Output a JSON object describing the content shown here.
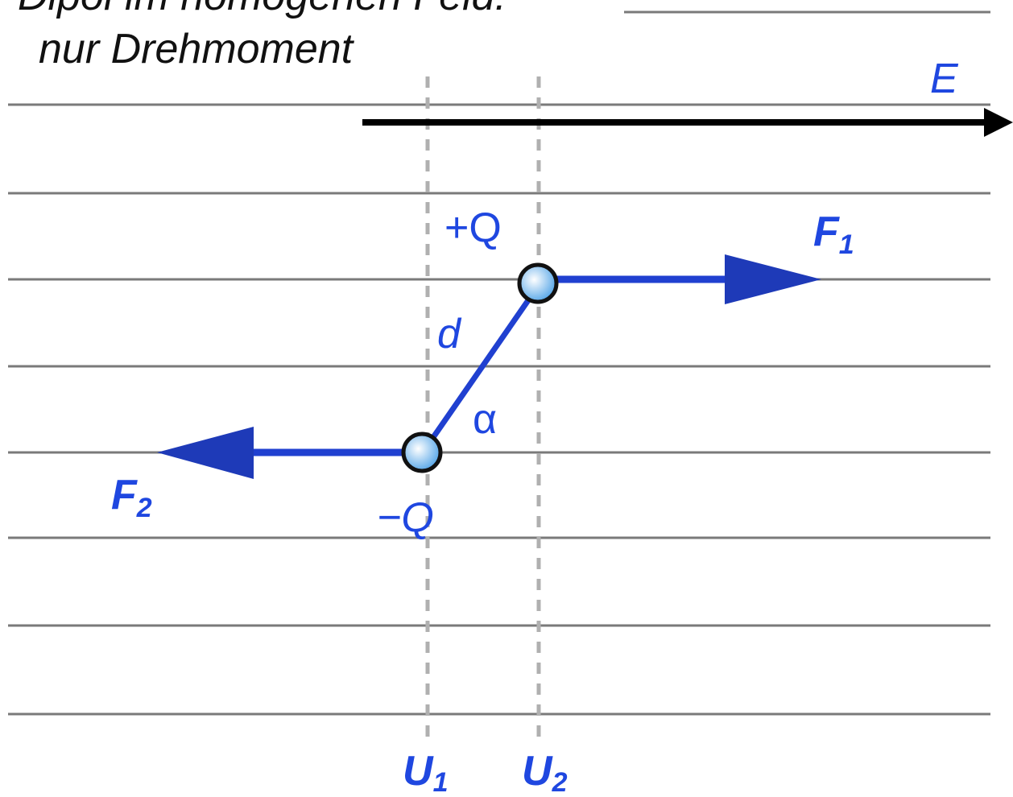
{
  "title": [
    "Dipol im homogenen Feld:",
    "nur Drehmoment"
  ],
  "labels": {
    "field": "E",
    "positive_charge": "+Q",
    "negative_charge": "−Q",
    "distance": "d",
    "angle": "α",
    "force_1": {
      "text": "F",
      "sub": "1"
    },
    "force_2": {
      "text": "F",
      "sub": "2"
    },
    "potential_1": {
      "text": "U",
      "sub": "1"
    },
    "potential_2": {
      "text": "U",
      "sub": "2"
    }
  }
}
